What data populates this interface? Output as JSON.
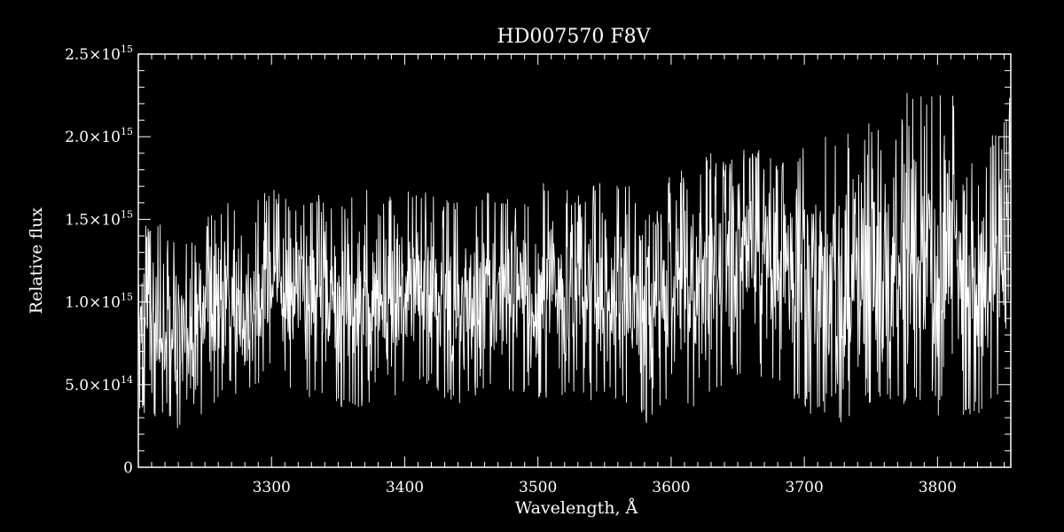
{
  "chart_data": {
    "type": "line",
    "title": "HD007570  F8V",
    "xlabel": "Wavelength, Å",
    "ylabel": "Relative flux",
    "xlim": [
      3200,
      3855
    ],
    "ylim": [
      0,
      2500000000000000.0
    ],
    "x_ticks": [
      3300,
      3400,
      3500,
      3600,
      3700,
      3800
    ],
    "x_tick_labels": [
      "3300",
      "3400",
      "3500",
      "3600",
      "3700",
      "3800"
    ],
    "y_ticks": [
      {
        "value": 0,
        "mantissa": "0",
        "exponent": ""
      },
      {
        "value": 500000000000000.0,
        "mantissa": "5.0×10",
        "exponent": "14"
      },
      {
        "value": 1000000000000000.0,
        "mantissa": "1.0×10",
        "exponent": "15"
      },
      {
        "value": 1500000000000000.0,
        "mantissa": "1.5×10",
        "exponent": "15"
      },
      {
        "value": 2000000000000000.0,
        "mantissa": "2.0×10",
        "exponent": "15"
      },
      {
        "value": 2500000000000000.0,
        "mantissa": "2.5×10",
        "exponent": "15"
      }
    ],
    "series": [
      {
        "color": "#ffffff",
        "sampling": "approximate, densely sampled noisy spectrum",
        "x": [
          3200,
          3210,
          3220,
          3230,
          3240,
          3250,
          3260,
          3270,
          3280,
          3290,
          3300,
          3310,
          3320,
          3330,
          3340,
          3350,
          3360,
          3370,
          3380,
          3390,
          3400,
          3410,
          3420,
          3430,
          3440,
          3450,
          3460,
          3470,
          3480,
          3490,
          3500,
          3510,
          3520,
          3530,
          3540,
          3550,
          3560,
          3570,
          3580,
          3590,
          3600,
          3610,
          3620,
          3630,
          3640,
          3650,
          3660,
          3670,
          3680,
          3690,
          3700,
          3710,
          3720,
          3730,
          3740,
          3750,
          3760,
          3770,
          3780,
          3790,
          3800,
          3810,
          3820,
          3830,
          3840,
          3850,
          3855
        ],
        "upper": [
          1500000000000000.0,
          1450000000000000.0,
          1500000000000000.0,
          1300000000000000.0,
          1400000000000000.0,
          1500000000000000.0,
          1600000000000000.0,
          1650000000000000.0,
          1600000000000000.0,
          1650000000000000.0,
          1700000000000000.0,
          1650000000000000.0,
          1600000000000000.0,
          1650000000000000.0,
          1700000000000000.0,
          1600000000000000.0,
          1650000000000000.0,
          1700000000000000.0,
          1600000000000000.0,
          1650000000000000.0,
          1750000000000000.0,
          1700000000000000.0,
          1650000000000000.0,
          1700000000000000.0,
          1600000000000000.0,
          1650000000000000.0,
          1700000000000000.0,
          1600000000000000.0,
          1650000000000000.0,
          1600000000000000.0,
          1700000000000000.0,
          1750000000000000.0,
          1700000000000000.0,
          1650000000000000.0,
          1700000000000000.0,
          1750000000000000.0,
          1700000000000000.0,
          1750000000000000.0,
          1600000000000000.0,
          1550000000000000.0,
          1850000000000000.0,
          1800000000000000.0,
          1850000000000000.0,
          1900000000000000.0,
          1850000000000000.0,
          1900000000000000.0,
          1950000000000000.0,
          1900000000000000.0,
          1850000000000000.0,
          1900000000000000.0,
          2000000000000000.0,
          1950000000000000.0,
          2050000000000000.0,
          2100000000000000.0,
          2000000000000000.0,
          2150000000000000.0,
          2100000000000000.0,
          2050000000000000.0,
          2400000000000000.0,
          2200000000000000.0,
          2300000000000000.0,
          2350000000000000.0,
          2100000000000000.0,
          1800000000000000.0,
          2000000000000000.0,
          2200000000000000.0,
          2250000000000000.0
        ],
        "lower": [
          350000000000000.0,
          300000000000000.0,
          250000000000000.0,
          200000000000000.0,
          250000000000000.0,
          300000000000000.0,
          400000000000000.0,
          450000000000000.0,
          400000000000000.0,
          500000000000000.0,
          550000000000000.0,
          500000000000000.0,
          450000000000000.0,
          400000000000000.0,
          450000000000000.0,
          350000000000000.0,
          300000000000000.0,
          350000000000000.0,
          450000000000000.0,
          400000000000000.0,
          450000000000000.0,
          500000000000000.0,
          450000000000000.0,
          400000000000000.0,
          350000000000000.0,
          450000000000000.0,
          400000000000000.0,
          450000000000000.0,
          400000000000000.0,
          450000000000000.0,
          400000000000000.0,
          350000000000000.0,
          400000000000000.0,
          350000000000000.0,
          400000000000000.0,
          450000000000000.0,
          350000000000000.0,
          300000000000000.0,
          250000000000000.0,
          200000000000000.0,
          300000000000000.0,
          400000000000000.0,
          350000000000000.0,
          400000000000000.0,
          500000000000000.0,
          550000000000000.0,
          600000000000000.0,
          500000000000000.0,
          450000000000000.0,
          400000000000000.0,
          300000000000000.0,
          350000000000000.0,
          300000000000000.0,
          250000000000000.0,
          300000000000000.0,
          350000000000000.0,
          300000000000000.0,
          350000000000000.0,
          400000000000000.0,
          350000000000000.0,
          300000000000000.0,
          350000000000000.0,
          300000000000000.0,
          300000000000000.0,
          350000000000000.0,
          400000000000000.0,
          450000000000000.0
        ]
      }
    ],
    "grid": false,
    "legend": "none"
  },
  "colors": {
    "background": "#000000",
    "foreground": "#ffffff"
  }
}
